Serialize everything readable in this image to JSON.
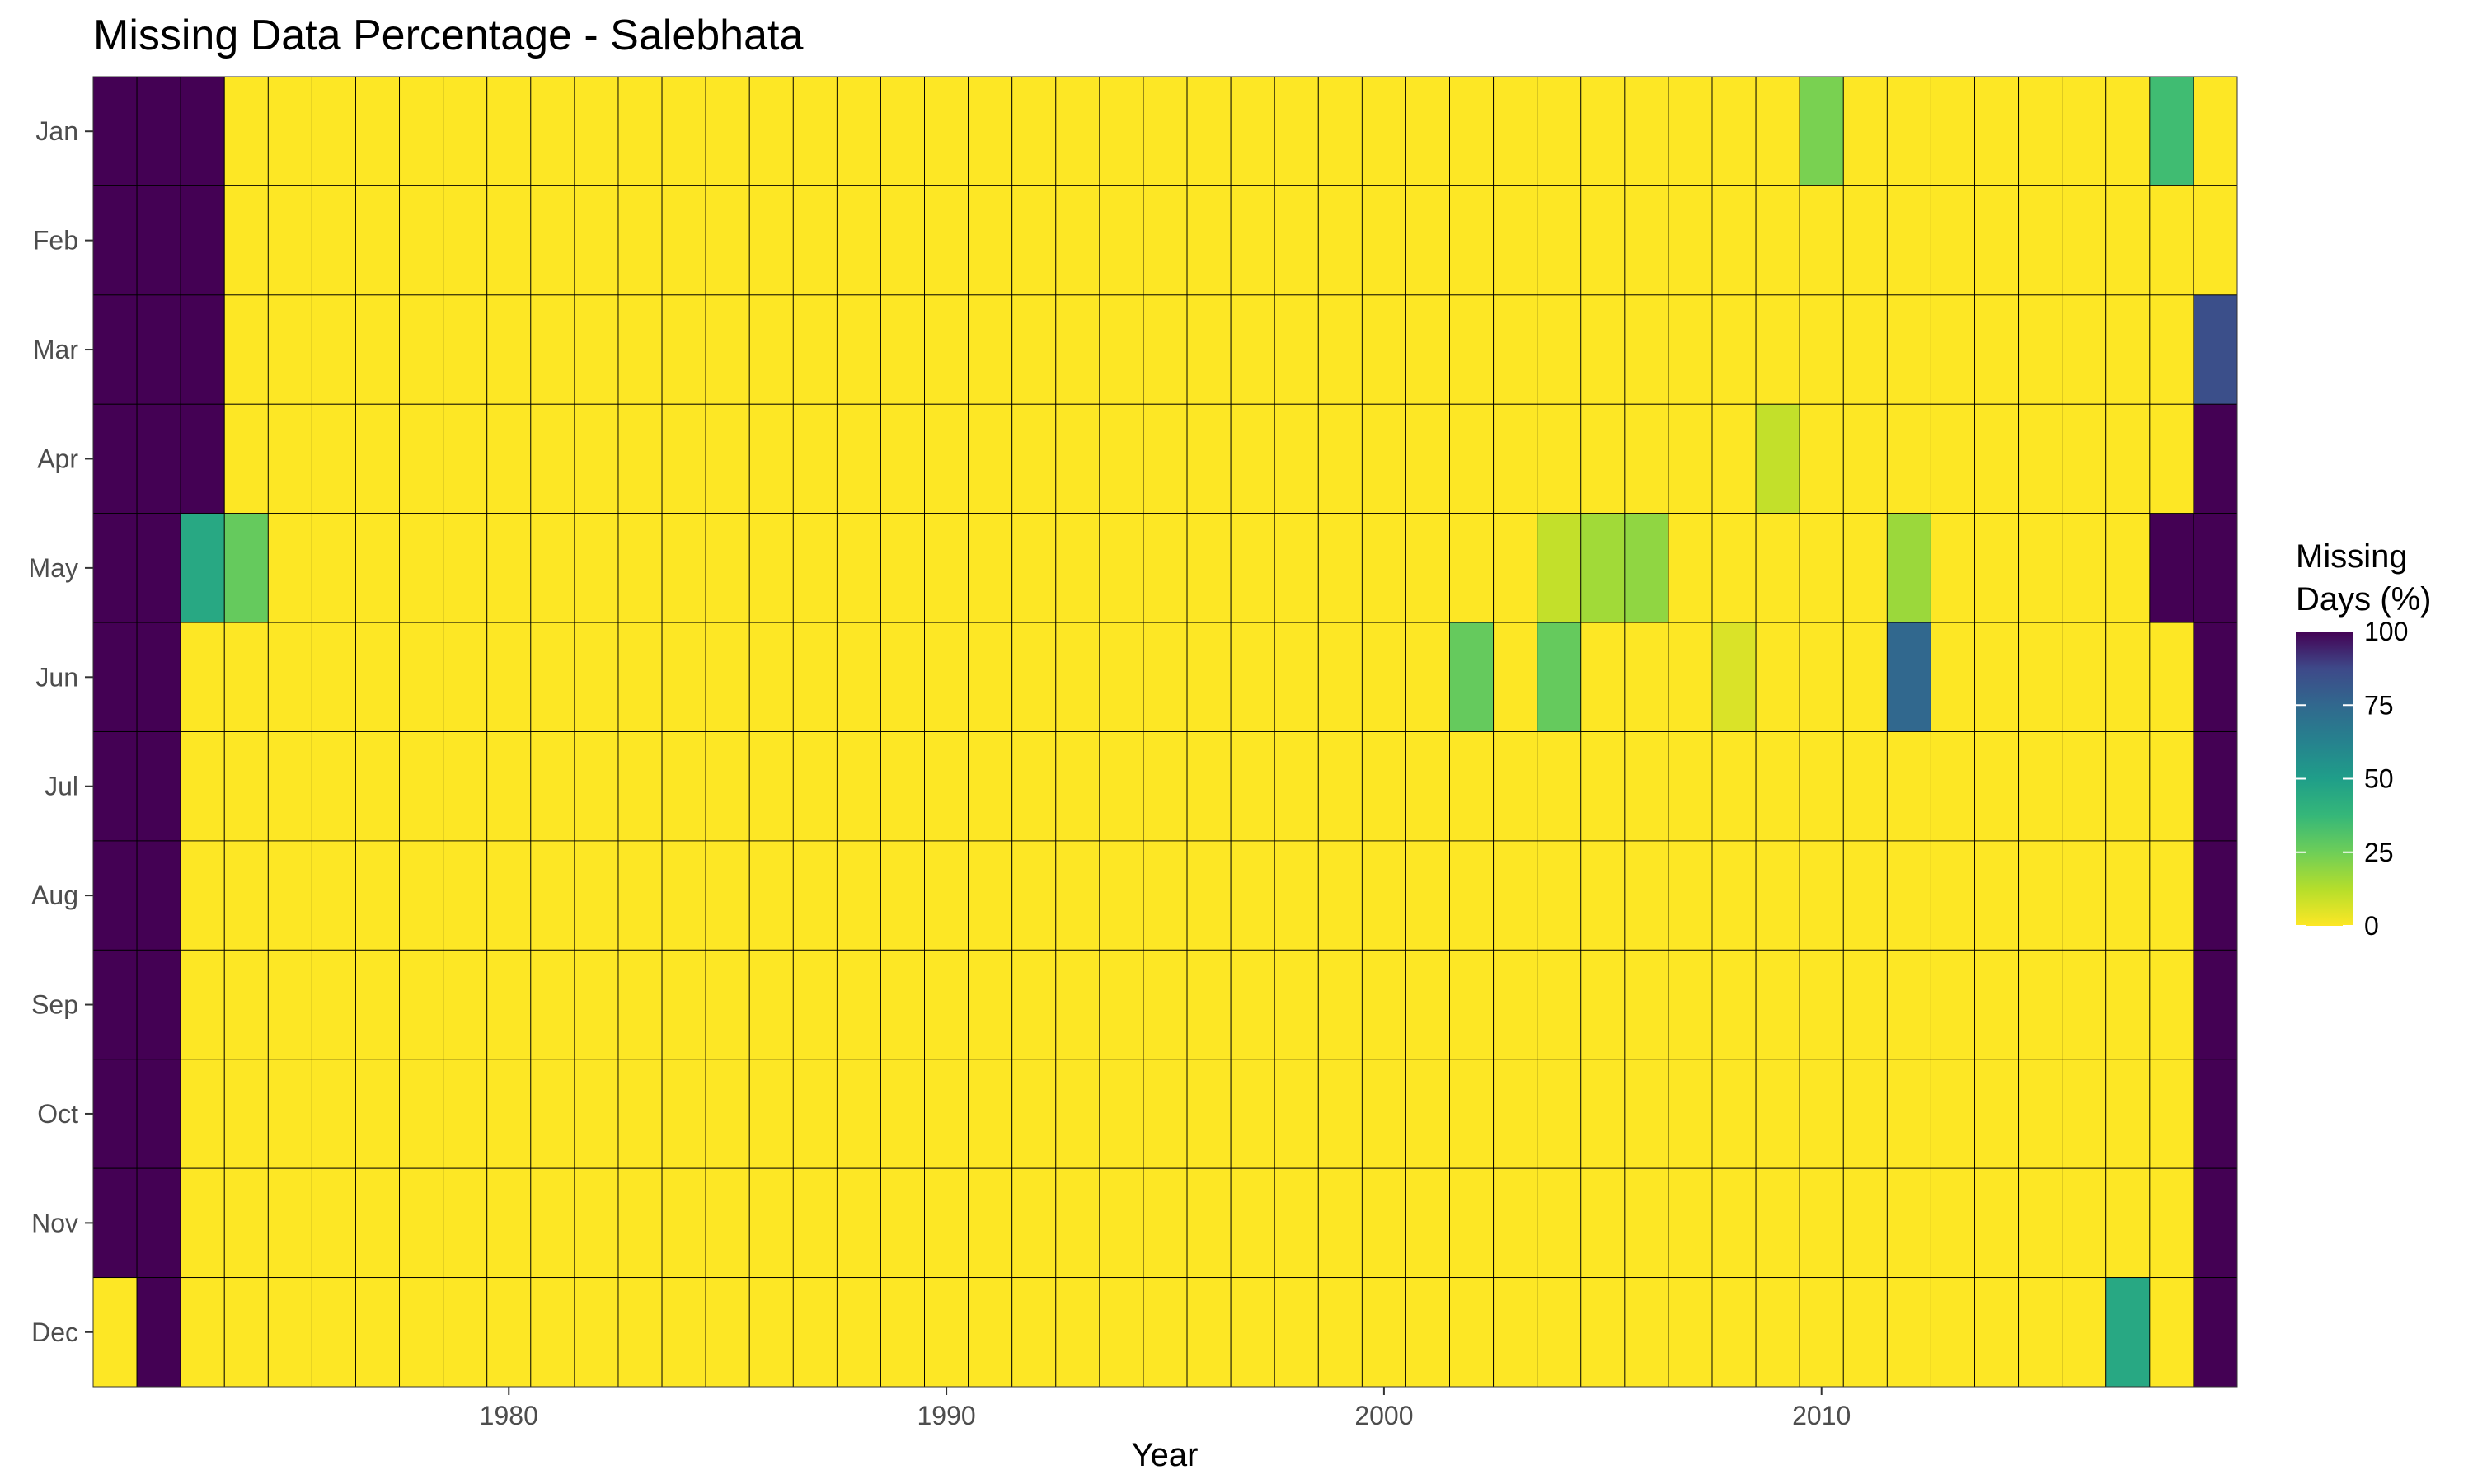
{
  "chart_data": {
    "type": "heatmap",
    "title": "Missing Data Percentage - Salebhata",
    "xlabel": "Year",
    "ylabel": "",
    "x_start": 1971,
    "x_end": 2019,
    "x_ticks": [
      1980,
      1990,
      2000,
      2010
    ],
    "y_categories": [
      "Jan",
      "Feb",
      "Mar",
      "Apr",
      "May",
      "Jun",
      "Jul",
      "Aug",
      "Sep",
      "Oct",
      "Nov",
      "Dec"
    ],
    "default_value": 0,
    "color_scale": "viridis-reversed",
    "value_range": [
      0,
      100
    ],
    "legend": {
      "title_line1": "Missing",
      "title_line2": "Days (%)",
      "ticks": [
        0,
        25,
        50,
        75,
        100
      ],
      "placement": "right"
    },
    "nonzero_cells": [
      {
        "month": "Jan",
        "year": 1971,
        "value": 100
      },
      {
        "month": "Jan",
        "year": 1972,
        "value": 100
      },
      {
        "month": "Jan",
        "year": 1973,
        "value": 100
      },
      {
        "month": "Jan",
        "year": 2010,
        "value": 23
      },
      {
        "month": "Jan",
        "year": 2018,
        "value": 35
      },
      {
        "month": "Feb",
        "year": 1971,
        "value": 100
      },
      {
        "month": "Feb",
        "year": 1972,
        "value": 100
      },
      {
        "month": "Feb",
        "year": 1973,
        "value": 100
      },
      {
        "month": "Mar",
        "year": 1971,
        "value": 100
      },
      {
        "month": "Mar",
        "year": 1972,
        "value": 100
      },
      {
        "month": "Mar",
        "year": 1973,
        "value": 100
      },
      {
        "month": "Mar",
        "year": 2019,
        "value": 85
      },
      {
        "month": "Apr",
        "year": 1971,
        "value": 100
      },
      {
        "month": "Apr",
        "year": 1972,
        "value": 100
      },
      {
        "month": "Apr",
        "year": 1973,
        "value": 100
      },
      {
        "month": "Apr",
        "year": 2009,
        "value": 10
      },
      {
        "month": "Apr",
        "year": 2019,
        "value": 100
      },
      {
        "month": "May",
        "year": 1971,
        "value": 100
      },
      {
        "month": "May",
        "year": 1972,
        "value": 100
      },
      {
        "month": "May",
        "year": 1973,
        "value": 45
      },
      {
        "month": "May",
        "year": 1974,
        "value": 27
      },
      {
        "month": "May",
        "year": 2004,
        "value": 10
      },
      {
        "month": "May",
        "year": 2005,
        "value": 16
      },
      {
        "month": "May",
        "year": 2006,
        "value": 19
      },
      {
        "month": "May",
        "year": 2012,
        "value": 17
      },
      {
        "month": "May",
        "year": 2018,
        "value": 100
      },
      {
        "month": "May",
        "year": 2019,
        "value": 100
      },
      {
        "month": "Jun",
        "year": 1971,
        "value": 100
      },
      {
        "month": "Jun",
        "year": 1972,
        "value": 100
      },
      {
        "month": "Jun",
        "year": 2002,
        "value": 27
      },
      {
        "month": "Jun",
        "year": 2004,
        "value": 27
      },
      {
        "month": "Jun",
        "year": 2008,
        "value": 6
      },
      {
        "month": "Jun",
        "year": 2012,
        "value": 75
      },
      {
        "month": "Jun",
        "year": 2019,
        "value": 100
      },
      {
        "month": "Jul",
        "year": 1971,
        "value": 100
      },
      {
        "month": "Jul",
        "year": 1972,
        "value": 100
      },
      {
        "month": "Jul",
        "year": 2019,
        "value": 100
      },
      {
        "month": "Aug",
        "year": 1971,
        "value": 100
      },
      {
        "month": "Aug",
        "year": 1972,
        "value": 100
      },
      {
        "month": "Aug",
        "year": 2019,
        "value": 100
      },
      {
        "month": "Sep",
        "year": 1971,
        "value": 100
      },
      {
        "month": "Sep",
        "year": 1972,
        "value": 100
      },
      {
        "month": "Sep",
        "year": 2019,
        "value": 100
      },
      {
        "month": "Oct",
        "year": 1971,
        "value": 100
      },
      {
        "month": "Oct",
        "year": 1972,
        "value": 100
      },
      {
        "month": "Oct",
        "year": 2019,
        "value": 100
      },
      {
        "month": "Nov",
        "year": 1971,
        "value": 100
      },
      {
        "month": "Nov",
        "year": 1972,
        "value": 100
      },
      {
        "month": "Nov",
        "year": 2019,
        "value": 100
      },
      {
        "month": "Dec",
        "year": 1972,
        "value": 100
      },
      {
        "month": "Dec",
        "year": 2017,
        "value": 45
      },
      {
        "month": "Dec",
        "year": 2019,
        "value": 100
      }
    ]
  }
}
